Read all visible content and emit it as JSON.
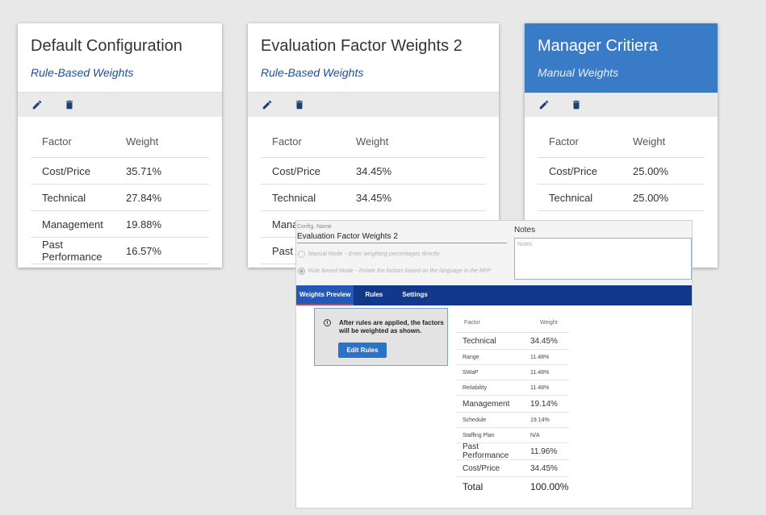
{
  "cards": [
    {
      "title": "Default Configuration",
      "subtitle": "Rule-Based Weights",
      "header": {
        "factor": "Factor",
        "weight": "Weight"
      },
      "rows": [
        {
          "factor": "Cost/Price",
          "weight": "35.71%"
        },
        {
          "factor": "Technical",
          "weight": "27.84%"
        },
        {
          "factor": "Management",
          "weight": "19.88%"
        },
        {
          "factor": "Past Performance",
          "weight": "16.57%"
        }
      ]
    },
    {
      "title": "Evaluation Factor Weights 2",
      "subtitle": "Rule-Based Weights",
      "header": {
        "factor": "Factor",
        "weight": "Weight"
      },
      "rows": [
        {
          "factor": "Cost/Price",
          "weight": "34.45%"
        },
        {
          "factor": "Technical",
          "weight": "34.45%"
        },
        {
          "factor": "Mana",
          "weight": ""
        },
        {
          "factor": "Past",
          "weight": ""
        }
      ]
    },
    {
      "title": "Manager Critiera",
      "subtitle": "Manual Weights",
      "header": {
        "factor": "Factor",
        "weight": "Weight"
      },
      "rows": [
        {
          "factor": "Cost/Price",
          "weight": "25.00%"
        },
        {
          "factor": "Technical",
          "weight": "25.00%"
        }
      ]
    }
  ],
  "icons": {
    "edit": "pencil-icon",
    "delete": "trash-icon",
    "info": "info-icon"
  },
  "colors": {
    "accent": "#3a7bc8",
    "tabbar": "#12388b",
    "button": "#2b73c8",
    "link": "#1f4e96"
  },
  "editor": {
    "config_name_label": "Config. Name",
    "config_name_value": "Evaluation Factor Weights 2",
    "manual_mode_label": "Manual Mode",
    "manual_mode_desc": "- Enter weighting percentages directly",
    "rule_mode_label": "Rule Based Mode",
    "rule_mode_desc": "- Relate the factors based on the language in the RFP",
    "notes_label": "Notes",
    "notes_placeholder": "Notes",
    "tabs": [
      "Weights Preview",
      "Rules",
      "Settings"
    ],
    "info_text": "After rules are applied, the factors will be weighted as shown.",
    "edit_rules_label": "Edit Rules",
    "preview": {
      "header": {
        "factor": "Factor",
        "weight": "Weight"
      },
      "rows": [
        {
          "factor": "Technical",
          "weight": "34.45%",
          "level": "main"
        },
        {
          "factor": "Range",
          "weight": "11.48%",
          "level": "sub"
        },
        {
          "factor": "SWaP",
          "weight": "11.48%",
          "level": "sub"
        },
        {
          "factor": "Reliability",
          "weight": "11.48%",
          "level": "sub"
        },
        {
          "factor": "Management",
          "weight": "19.14%",
          "level": "main"
        },
        {
          "factor": "Schedule",
          "weight": "19.14%",
          "level": "sub"
        },
        {
          "factor": "Staffing Plan",
          "weight": "N/A",
          "level": "sub"
        },
        {
          "factor": "Past Performance",
          "weight": "11.96%",
          "level": "main"
        },
        {
          "factor": "Cost/Price",
          "weight": "34.45%",
          "level": "main"
        }
      ],
      "total_label": "Total",
      "total_value": "100.00%"
    }
  }
}
